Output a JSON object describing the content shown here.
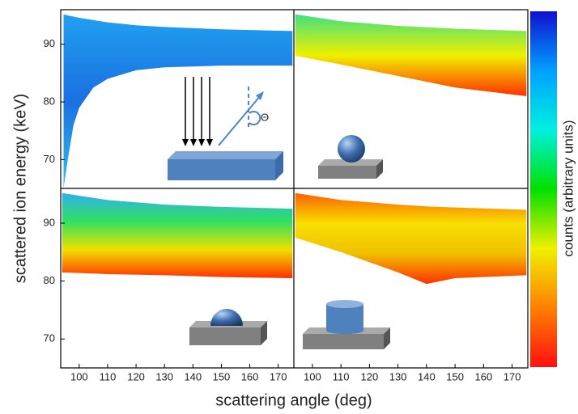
{
  "chart_data": {
    "type": "heatmap",
    "x_label": "scattering angle (deg)",
    "y_label": "scattered ion energy (keV)",
    "colorbar_label": "counts (arbitrary units)",
    "annotation": "Θ",
    "xlim": [
      93.5,
      175.5
    ],
    "xticks": [
      100,
      110,
      120,
      130,
      140,
      150,
      160,
      170
    ],
    "ylim": [
      65,
      96
    ],
    "yticks": [
      70,
      80,
      90
    ],
    "colorbar_colors": [
      "#1010d0",
      "#00a0ff",
      "#00f0e0",
      "#00e000",
      "#f0f000",
      "#ff8000",
      "#ff1010"
    ],
    "panels": [
      {
        "x": [
          94.5,
          96,
          98,
          100,
          105,
          110,
          120,
          130,
          150,
          175
        ],
        "upper": [
          95.2,
          95,
          94.8,
          94.6,
          94.2,
          93.8,
          93.3,
          93,
          92.6,
          92.3
        ],
        "lower": [
          65,
          70,
          76,
          79,
          82.5,
          84,
          85.5,
          86,
          86.3,
          86.3
        ],
        "colors": [
          "#20a0f0",
          "#1a70e0",
          "#30c0f0"
        ]
      },
      {
        "x": [
          94,
          110,
          130,
          150,
          175
        ],
        "upper": [
          95.2,
          94,
          93.2,
          92.7,
          92.3
        ],
        "lower": [
          88,
          86.5,
          84.5,
          82.5,
          81
        ],
        "colors": [
          "#40e080",
          "#f0f000",
          "#ff3000"
        ]
      },
      {
        "x": [
          94,
          110,
          130,
          150,
          175
        ],
        "upper": [
          95.2,
          94,
          93.2,
          92.8,
          92.5
        ],
        "lower": [
          81.5,
          81.2,
          81,
          80.7,
          80.5
        ],
        "colors": [
          "#30b0f0",
          "#30e060",
          "#f0e000",
          "#ff3000"
        ]
      },
      {
        "x": [
          94,
          110,
          130,
          140,
          150,
          175
        ],
        "upper": [
          95.2,
          94,
          93.2,
          92.9,
          92.7,
          92.3
        ],
        "lower": [
          87.5,
          85,
          81.5,
          79.5,
          80.5,
          81
        ],
        "colors": [
          "#ff6000",
          "#f8e000",
          "#f0c000",
          "#ff3000"
        ]
      }
    ]
  }
}
